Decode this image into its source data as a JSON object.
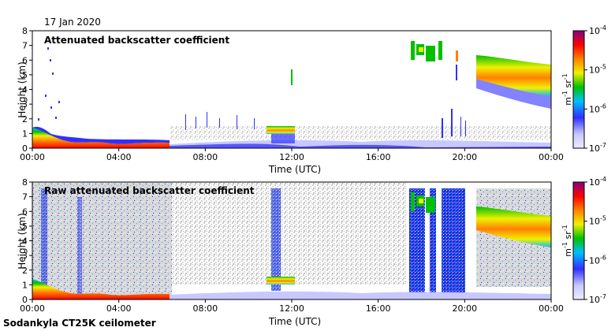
{
  "date": "17 Jan 2020",
  "footer": "Sodankyla CT25K ceilometer",
  "colorbar": {
    "max_label_base": "10",
    "max_label_exp": "-4",
    "ticks": [
      {
        "base": "10",
        "exp": "-5",
        "value": 1e-05
      },
      {
        "base": "10",
        "exp": "-6",
        "value": 1e-06
      },
      {
        "base": "10",
        "exp": "-7",
        "value": 1e-07
      }
    ],
    "unit_m": "m",
    "unit_m_exp": "-1",
    "unit_sr": " sr",
    "unit_sr_exp": "-1",
    "range": [
      1e-07,
      0.0001
    ],
    "scale": "log",
    "colors": [
      "#e6e6ff",
      "#3030ff",
      "#00c0ff",
      "#00d000",
      "#f0f000",
      "#ff8000",
      "#ff0000",
      "#800080"
    ]
  },
  "chart_data": [
    {
      "type": "heatmap",
      "title": "Attenuated backscatter coefficient",
      "xlabel": "Time (UTC)",
      "ylabel": "Height (km)",
      "x_ticks": [
        "00:00",
        "04:00",
        "08:00",
        "12:00",
        "16:00",
        "20:00",
        "00:00"
      ],
      "y_ticks": [
        "0",
        "1",
        "2",
        "3",
        "4",
        "5",
        "6",
        "7",
        "8"
      ],
      "xlim_hours": [
        0,
        24
      ],
      "ylim_km": [
        0,
        8
      ],
      "features": [
        {
          "t": [
            0,
            2.2
          ],
          "h": [
            0,
            0.5
          ],
          "level": "high"
        },
        {
          "t": [
            2.2,
            6.3
          ],
          "h": [
            0.3,
            0.5
          ],
          "level": "high"
        },
        {
          "t": [
            11,
            12.2
          ],
          "h": [
            1.2,
            1.5
          ],
          "level": "medium"
        },
        {
          "t": [
            17.7,
            19
          ],
          "h": [
            5.8,
            6.8
          ],
          "level": "medium"
        },
        {
          "t": [
            20.5,
            24
          ],
          "h": [
            3.5,
            6.0
          ],
          "level": "high"
        },
        {
          "t": [
            6.5,
            24
          ],
          "h": [
            0,
            0.5
          ],
          "level": "low"
        }
      ]
    },
    {
      "type": "heatmap",
      "title": "Raw attenuated backscatter coefficient",
      "xlabel": "Time (UTC)",
      "ylabel": "Height (km)",
      "x_ticks": [
        "00:00",
        "04:00",
        "08:00",
        "12:00",
        "16:00",
        "20:00",
        "00:00"
      ],
      "y_ticks": [
        "0",
        "1",
        "2",
        "3",
        "4",
        "5",
        "6",
        "7",
        "8"
      ],
      "xlim_hours": [
        0,
        24
      ],
      "ylim_km": [
        0,
        8
      ],
      "features": [
        {
          "t": [
            0,
            2.2
          ],
          "h": [
            0,
            0.5
          ],
          "level": "high"
        },
        {
          "t": [
            2.2,
            6.3
          ],
          "h": [
            0.3,
            0.5
          ],
          "level": "high"
        },
        {
          "t": [
            11,
            12.2
          ],
          "h": [
            1.2,
            1.5
          ],
          "level": "medium"
        },
        {
          "t": [
            17.7,
            19.8
          ],
          "h": [
            0,
            8
          ],
          "level": "noise"
        },
        {
          "t": [
            20.5,
            24
          ],
          "h": [
            3.5,
            6.0
          ],
          "level": "high"
        },
        {
          "t": [
            0,
            24
          ],
          "h": [
            0,
            8
          ],
          "level": "noise"
        }
      ]
    }
  ]
}
